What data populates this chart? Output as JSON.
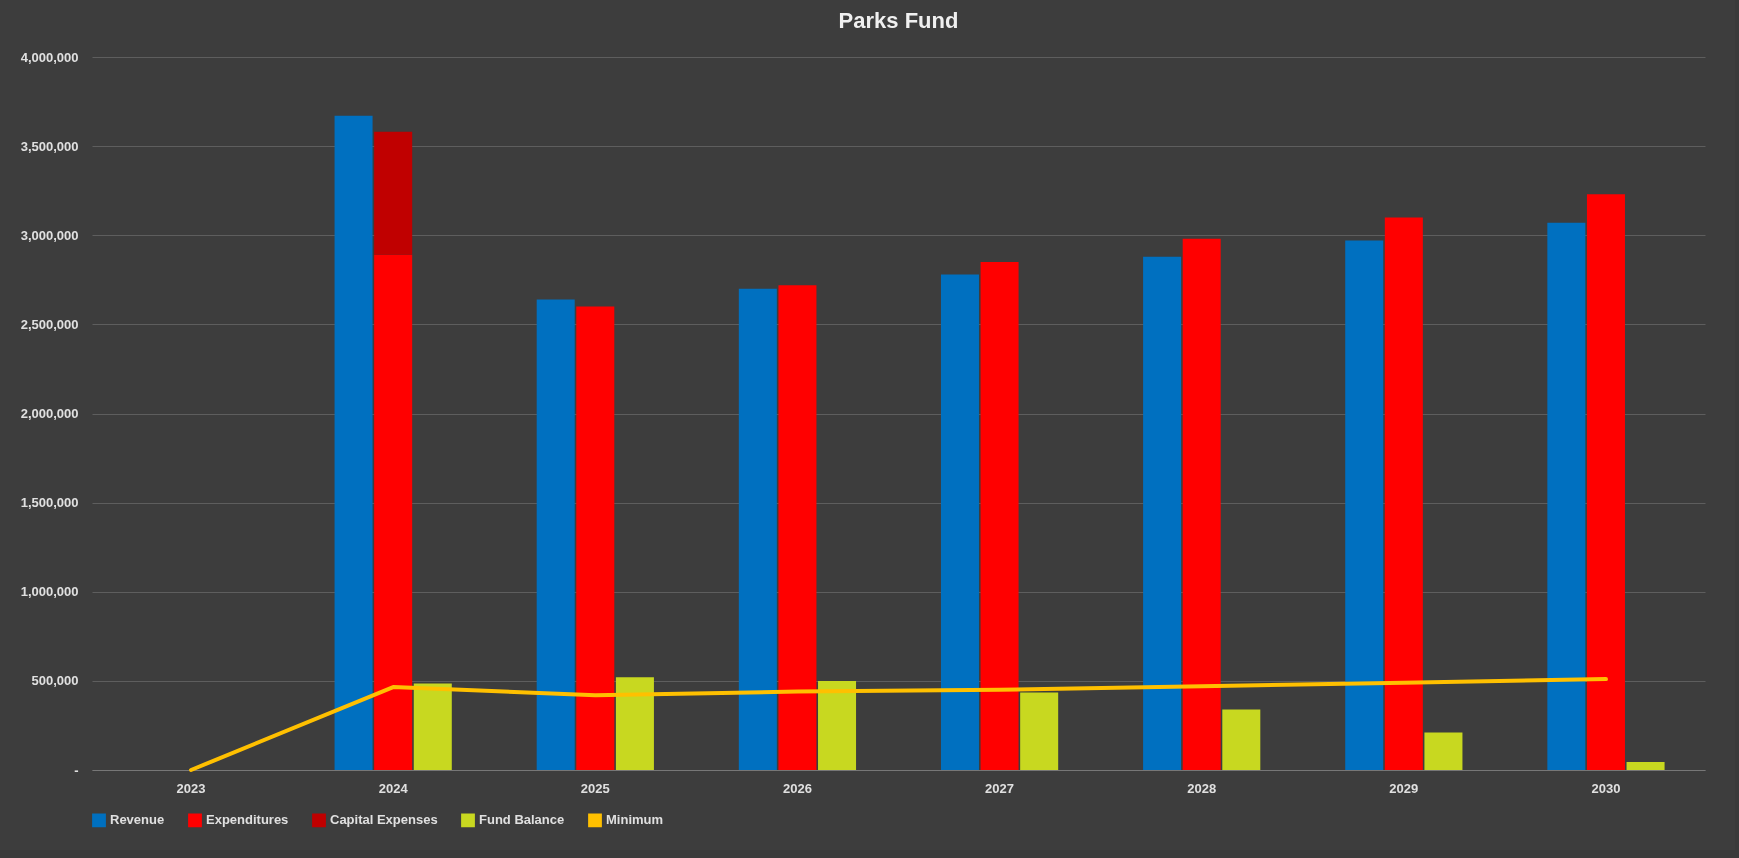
{
  "chart_data": {
    "type": "bar",
    "title": "Parks Fund",
    "categories": [
      "2023",
      "2024",
      "2025",
      "2026",
      "2027",
      "2028",
      "2029",
      "2030"
    ],
    "series": [
      {
        "name": "Revenue",
        "color": "#0070c0",
        "values": [
          null,
          3670000,
          2640000,
          2700000,
          2780000,
          2880000,
          2970000,
          3070000
        ]
      },
      {
        "name": "Expenditures",
        "color": "#ff0000",
        "values": [
          null,
          2890000,
          2600000,
          2720000,
          2850000,
          2980000,
          3100000,
          3230000
        ]
      },
      {
        "name": "Capital Expenses",
        "color": "#c00000",
        "values": [
          null,
          690000,
          null,
          null,
          null,
          null,
          null,
          null
        ],
        "base": [
          null,
          2890000,
          null,
          null,
          null,
          null,
          null,
          null
        ]
      },
      {
        "name": "Fund Balance",
        "color": "#c8d820",
        "values": [
          null,
          485000,
          520000,
          500000,
          435000,
          340000,
          210000,
          45000
        ]
      },
      {
        "name": "Minimum",
        "type": "line",
        "color": "#ffc000",
        "values": [
          0,
          465000,
          420000,
          440000,
          450000,
          470000,
          490000,
          510000
        ]
      }
    ],
    "ylim": [
      0,
      4000000
    ],
    "yticks": [
      {
        "value": 0,
        "label": "-"
      },
      {
        "value": 500000,
        "label": "500,000"
      },
      {
        "value": 1000000,
        "label": "1,000,000"
      },
      {
        "value": 1500000,
        "label": "1,500,000"
      },
      {
        "value": 2000000,
        "label": "2,000,000"
      },
      {
        "value": 2500000,
        "label": "2,500,000"
      },
      {
        "value": 3000000,
        "label": "3,000,000"
      },
      {
        "value": 3500000,
        "label": "3,500,000"
      },
      {
        "value": 4000000,
        "label": "4,000,000"
      }
    ],
    "grid": "y",
    "legend": "bottom"
  }
}
